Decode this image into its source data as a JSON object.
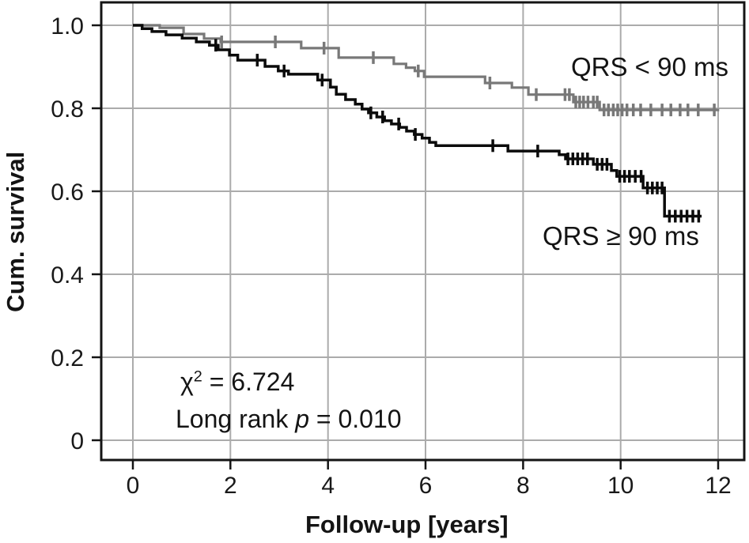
{
  "figure": {
    "background": "#ffffff"
  },
  "stats": {
    "chi_symbol": "χ",
    "chi_superscript": "2",
    "chi_rest": " = 6.724",
    "logrank_prefix": "Long rank ",
    "logrank_p_symbol": "p",
    "logrank_rest": " = 0.010"
  },
  "chart_data": {
    "type": "line",
    "variant": "kaplan-meier-step",
    "title": "",
    "xlabel": "Follow-up [years]",
    "ylabel": "Cum. survival",
    "xlim": [
      -0.65,
      12.55
    ],
    "ylim": [
      -0.05,
      1.06
    ],
    "grid": true,
    "legend_position": "inline-curve-labels",
    "colors": {
      "grid": "#ababab",
      "axis": "#141414",
      "text": "#191919",
      "curve_qrs_lt_90": "#787878",
      "curve_qrs_ge_90": "#0b0b0b"
    },
    "x_ticks": [
      {
        "value": 0,
        "label": "0"
      },
      {
        "value": 2,
        "label": "2"
      },
      {
        "value": 4,
        "label": "4"
      },
      {
        "value": 6,
        "label": "6"
      },
      {
        "value": 8,
        "label": "8"
      },
      {
        "value": 10,
        "label": "10"
      },
      {
        "value": 12,
        "label": "12"
      }
    ],
    "y_ticks": [
      {
        "value": 1.0,
        "label": "1.0"
      },
      {
        "value": 0.8,
        "label": "0.8"
      },
      {
        "value": 0.6,
        "label": "0.6"
      },
      {
        "value": 0.4,
        "label": "0.4"
      },
      {
        "value": 0.2,
        "label": "0.2"
      },
      {
        "value": 0.0,
        "label": "0"
      }
    ],
    "series": [
      {
        "id": "qrs-lt-90",
        "label": "QRS < 90 ms",
        "color": "#787878",
        "line_width": 3.2,
        "end_time": 12.02,
        "steps": [
          [
            0.0,
            1.0
          ],
          [
            0.55,
            0.994
          ],
          [
            1.04,
            0.979
          ],
          [
            1.46,
            0.968
          ],
          [
            1.8,
            0.96
          ],
          [
            3.45,
            0.945
          ],
          [
            4.22,
            0.922
          ],
          [
            5.35,
            0.907
          ],
          [
            5.6,
            0.898
          ],
          [
            5.78,
            0.89
          ],
          [
            5.97,
            0.876
          ],
          [
            7.22,
            0.861
          ],
          [
            7.77,
            0.85
          ],
          [
            8.11,
            0.833
          ],
          [
            9.03,
            0.815
          ],
          [
            9.57,
            0.796
          ]
        ],
        "censor_times": [
          1.82,
          2.92,
          3.92,
          4.93,
          5.85,
          7.32,
          8.27,
          8.86,
          8.95,
          9.08,
          9.16,
          9.24,
          9.33,
          9.44,
          9.52,
          9.66,
          9.75,
          9.85,
          9.94,
          10.03,
          10.13,
          10.26,
          10.41,
          10.62,
          10.85,
          11.03,
          11.22,
          11.38,
          11.59,
          11.92
        ]
      },
      {
        "id": "qrs-ge-90",
        "label": "QRS ≥ 90 ms",
        "color": "#0b0b0b",
        "line_width": 3.5,
        "end_time": 11.66,
        "steps": [
          [
            0.0,
            1.0
          ],
          [
            0.19,
            0.992
          ],
          [
            0.39,
            0.985
          ],
          [
            0.68,
            0.977
          ],
          [
            1.01,
            0.969
          ],
          [
            1.3,
            0.96
          ],
          [
            1.57,
            0.952
          ],
          [
            1.75,
            0.941
          ],
          [
            1.98,
            0.928
          ],
          [
            2.15,
            0.916
          ],
          [
            2.71,
            0.901
          ],
          [
            2.98,
            0.89
          ],
          [
            3.19,
            0.882
          ],
          [
            3.79,
            0.868
          ],
          [
            4.05,
            0.851
          ],
          [
            4.17,
            0.834
          ],
          [
            4.36,
            0.821
          ],
          [
            4.56,
            0.81
          ],
          [
            4.7,
            0.798
          ],
          [
            4.83,
            0.789
          ],
          [
            5.0,
            0.779
          ],
          [
            5.16,
            0.77
          ],
          [
            5.3,
            0.762
          ],
          [
            5.47,
            0.754
          ],
          [
            5.61,
            0.745
          ],
          [
            5.77,
            0.737
          ],
          [
            5.93,
            0.728
          ],
          [
            6.08,
            0.718
          ],
          [
            6.21,
            0.71
          ],
          [
            7.69,
            0.697
          ],
          [
            8.74,
            0.688
          ],
          [
            8.87,
            0.678
          ],
          [
            9.44,
            0.665
          ],
          [
            9.81,
            0.65
          ],
          [
            9.92,
            0.636
          ],
          [
            10.46,
            0.608
          ],
          [
            10.9,
            0.54
          ]
        ],
        "censor_times": [
          1.7,
          2.55,
          3.1,
          3.88,
          4.88,
          5.12,
          5.45,
          5.79,
          7.38,
          8.3,
          8.92,
          9.02,
          9.12,
          9.22,
          9.32,
          9.52,
          9.62,
          9.72,
          9.98,
          10.08,
          10.18,
          10.3,
          10.42,
          10.55,
          10.65,
          10.75,
          10.85,
          11.0,
          11.12,
          11.24,
          11.36,
          11.48,
          11.6
        ]
      }
    ],
    "annotations": [
      "χ² = 6.724",
      "Long rank p = 0.010"
    ]
  }
}
